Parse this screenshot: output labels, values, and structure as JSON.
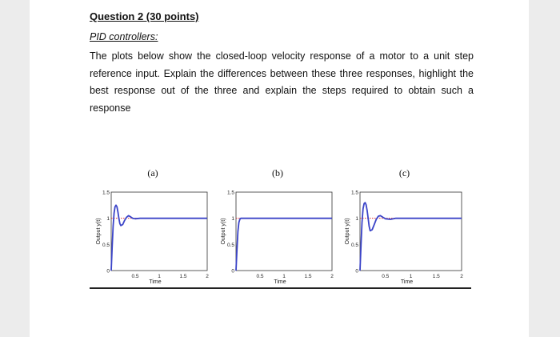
{
  "question": {
    "title": "Question 2 (30 points)",
    "subtitle": "PID controllers:",
    "body": "The plots below show the closed-loop velocity response of a motor to a unit step reference input. Explain the differences between these three responses, highlight the best response out of the three and explain the steps required to obtain such a response"
  },
  "colors": {
    "response": "#3b44c8",
    "reference": "#e03030",
    "axis": "#333333"
  },
  "chart_data": [
    {
      "type": "line",
      "title": "(a)",
      "xlabel": "Time",
      "ylabel": "Output y(t)",
      "xlim": [
        0,
        2
      ],
      "ylim": [
        0,
        1.5
      ],
      "x_ticks": [
        "0",
        "0.5",
        "1",
        "1.5",
        "2"
      ],
      "y_ticks": [
        "0",
        "0.5",
        "1",
        "1.5"
      ],
      "reference": 1,
      "series": [
        {
          "x": [
            0,
            0.02,
            0.04,
            0.06,
            0.08,
            0.1,
            0.12,
            0.14,
            0.16,
            0.18,
            0.2,
            0.24,
            0.28,
            0.32,
            0.36,
            0.4,
            0.45,
            0.5,
            0.6,
            0.7,
            0.8,
            1.0,
            1.5,
            2.0
          ],
          "y": [
            0,
            0.45,
            0.85,
            1.1,
            1.22,
            1.25,
            1.22,
            1.12,
            1.0,
            0.9,
            0.86,
            0.88,
            0.96,
            1.02,
            1.05,
            1.03,
            1.0,
            0.99,
            1.0,
            1.0,
            1.0,
            1.0,
            1.0,
            1.0
          ]
        }
      ]
    },
    {
      "type": "line",
      "title": "(b)",
      "xlabel": "Time",
      "ylabel": "Output y(t)",
      "xlim": [
        0,
        2
      ],
      "ylim": [
        0,
        1.5
      ],
      "x_ticks": [
        "0",
        "0.5",
        "1",
        "1.5",
        "2"
      ],
      "y_ticks": [
        "0",
        "0.5",
        "1",
        "1.5"
      ],
      "reference": 1,
      "series": [
        {
          "x": [
            0,
            0.02,
            0.04,
            0.06,
            0.08,
            0.1,
            0.12,
            0.15,
            0.2,
            0.3,
            0.5,
            1.0,
            1.5,
            2.0
          ],
          "y": [
            0,
            0.4,
            0.75,
            0.92,
            0.98,
            1.0,
            1.0,
            1.0,
            1.0,
            1.0,
            1.0,
            1.0,
            1.0,
            1.0
          ]
        }
      ]
    },
    {
      "type": "line",
      "title": "(c)",
      "xlabel": "Time",
      "ylabel": "Output y(t)",
      "xlim": [
        0,
        2
      ],
      "ylim": [
        0,
        1.5
      ],
      "x_ticks": [
        "0",
        "0.5",
        "1",
        "1.5",
        "2"
      ],
      "y_ticks": [
        "0",
        "0.5",
        "1",
        "1.5"
      ],
      "reference": 1,
      "series": [
        {
          "x": [
            0,
            0.02,
            0.04,
            0.06,
            0.08,
            0.1,
            0.12,
            0.14,
            0.16,
            0.18,
            0.2,
            0.24,
            0.28,
            0.32,
            0.36,
            0.4,
            0.45,
            0.5,
            0.6,
            0.7,
            0.8,
            1.0,
            1.5,
            2.0
          ],
          "y": [
            0,
            0.5,
            0.92,
            1.18,
            1.28,
            1.3,
            1.26,
            1.15,
            1.0,
            0.85,
            0.76,
            0.78,
            0.88,
            0.98,
            1.04,
            1.05,
            1.02,
            0.99,
            0.98,
            1.0,
            1.0,
            1.0,
            1.0,
            1.0
          ]
        }
      ]
    }
  ]
}
